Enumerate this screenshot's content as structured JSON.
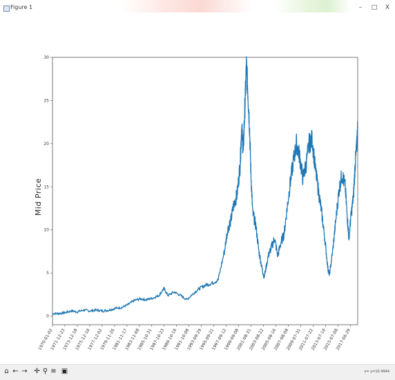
{
  "window": {
    "title": "Figure 1",
    "controls": {
      "minimize": "–",
      "maximize": "□",
      "close": "X"
    }
  },
  "toolbar": {
    "buttons": [
      "home-icon",
      "back-arrow-icon",
      "forward-arrow-icon",
      "pan-icon",
      "zoom-icon",
      "configure-subplots-icon",
      "save-icon"
    ],
    "glyphs": [
      "⌂",
      "←",
      "→",
      "✛",
      "⚲",
      "≡",
      "▣"
    ],
    "coords": "x= y=10.4944"
  },
  "chart_data": {
    "type": "line",
    "title": "",
    "xlabel": "",
    "ylabel": "Mid Price",
    "ylim": [
      -1,
      30
    ],
    "yticks": [
      0,
      5,
      10,
      15,
      20,
      25,
      30
    ],
    "xlim": [
      "1970-01-02",
      "2018-09-01"
    ],
    "grid": false,
    "legend": "none",
    "color": "#1f77b4",
    "xticks": [
      "1970-01-02",
      "1971-12-23",
      "1973-12-18",
      "1975-12-10",
      "1977-12-02",
      "1979-11-26",
      "1981-11-17",
      "1983-11-08",
      "1985-10-31",
      "1987-10-23",
      "1989-10-16",
      "1991-10-08",
      "1993-09-29",
      "1995-09-21",
      "1997-09-12",
      "1999-09-08",
      "2001-08-31",
      "2003-08-22",
      "2005-08-16",
      "2007-08-08",
      "2009-07-31",
      "2011-07-22",
      "2013-07-16",
      "2015-07-08",
      "2017-06-29"
    ],
    "points": [
      [
        "1970-01-02",
        0.3
      ],
      [
        "1971-01-01",
        0.3
      ],
      [
        "1972-01-01",
        0.4
      ],
      [
        "1973-01-01",
        0.6
      ],
      [
        "1974-01-01",
        0.5
      ],
      [
        "1975-01-01",
        0.7
      ],
      [
        "1976-01-01",
        0.6
      ],
      [
        "1977-01-01",
        0.7
      ],
      [
        "1978-01-01",
        0.6
      ],
      [
        "1979-01-01",
        0.7
      ],
      [
        "1980-01-01",
        0.9
      ],
      [
        "1981-01-01",
        1.0
      ],
      [
        "1982-01-01",
        1.3
      ],
      [
        "1983-01-01",
        1.8
      ],
      [
        "1984-01-01",
        2.0
      ],
      [
        "1985-01-01",
        1.9
      ],
      [
        "1986-01-01",
        2.1
      ],
      [
        "1987-01-01",
        2.4
      ],
      [
        "1987-10-01",
        3.2
      ],
      [
        "1988-06-01",
        2.4
      ],
      [
        "1989-06-01",
        2.8
      ],
      [
        "1990-06-01",
        2.4
      ],
      [
        "1991-06-01",
        1.9
      ],
      [
        "1992-06-01",
        2.6
      ],
      [
        "1993-06-01",
        3.2
      ],
      [
        "1994-06-01",
        3.6
      ],
      [
        "1995-06-01",
        3.8
      ],
      [
        "1996-06-01",
        4.2
      ],
      [
        "1997-06-01",
        7.5
      ],
      [
        "1997-12-01",
        10.0
      ],
      [
        "1998-06-01",
        11.0
      ],
      [
        "1998-12-01",
        13.0
      ],
      [
        "1999-06-01",
        14.0
      ],
      [
        "1999-12-01",
        17.5
      ],
      [
        "2000-03-01",
        22.0
      ],
      [
        "2000-06-01",
        19.0
      ],
      [
        "2000-09-01",
        24.0
      ],
      [
        "2000-12-01",
        29.0
      ],
      [
        "2001-03-01",
        26.0
      ],
      [
        "2001-06-01",
        22.0
      ],
      [
        "2001-09-01",
        16.0
      ],
      [
        "2001-12-01",
        12.0
      ],
      [
        "2002-06-01",
        10.5
      ],
      [
        "2002-12-01",
        7.5
      ],
      [
        "2003-06-01",
        5.5
      ],
      [
        "2003-10-01",
        4.5
      ],
      [
        "2004-06-01",
        7.0
      ],
      [
        "2004-12-01",
        8.0
      ],
      [
        "2005-06-01",
        9.0
      ],
      [
        "2005-12-01",
        7.0
      ],
      [
        "2006-06-01",
        8.5
      ],
      [
        "2006-12-01",
        9.5
      ],
      [
        "2007-06-01",
        12.5
      ],
      [
        "2007-12-01",
        15.5
      ],
      [
        "2008-06-01",
        18.0
      ],
      [
        "2008-12-01",
        20.0
      ],
      [
        "2009-06-01",
        18.5
      ],
      [
        "2009-12-01",
        16.0
      ],
      [
        "2010-06-01",
        17.5
      ],
      [
        "2010-12-01",
        20.0
      ],
      [
        "2011-06-01",
        20.5
      ],
      [
        "2011-12-01",
        17.0
      ],
      [
        "2012-06-01",
        14.5
      ],
      [
        "2012-12-01",
        12.0
      ],
      [
        "2013-06-01",
        9.0
      ],
      [
        "2013-12-01",
        5.5
      ],
      [
        "2014-03-01",
        4.8
      ],
      [
        "2014-09-01",
        7.5
      ],
      [
        "2015-03-01",
        11.0
      ],
      [
        "2015-09-01",
        14.5
      ],
      [
        "2016-03-01",
        16.5
      ],
      [
        "2016-09-01",
        15.0
      ],
      [
        "2017-01-01",
        11.5
      ],
      [
        "2017-04-01",
        9.0
      ],
      [
        "2017-08-01",
        11.5
      ],
      [
        "2018-01-01",
        14.0
      ],
      [
        "2018-04-01",
        17.5
      ],
      [
        "2018-07-01",
        19.5
      ],
      [
        "2018-09-01",
        22.0
      ]
    ]
  }
}
